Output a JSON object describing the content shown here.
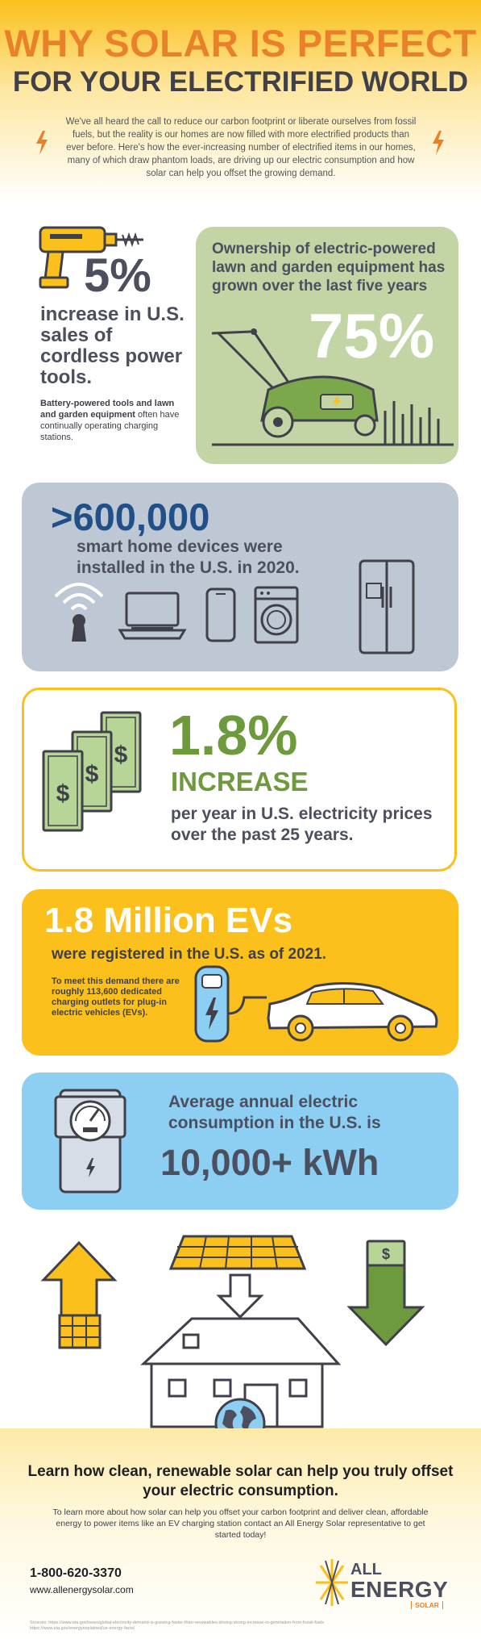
{
  "header": {
    "title_line1": "WHY SOLAR IS PERFECT",
    "title_line2": "FOR YOUR ELECTRIFIED WORLD",
    "intro": "We've all heard the call to reduce our carbon footprint or liberate ourselves from fossil fuels, but the reality is our homes are now filled with more electrified products than ever before. Here's how the ever-increasing number of electrified items in our homes, many of which draw phantom loads, are driving up our electric consumption and how solar can help you offset the growing demand."
  },
  "tools": {
    "percent": "5%",
    "headline": "increase in U.S. sales of cordless power tools.",
    "detail_bold": "Battery-powered tools and lawn and garden equipment",
    "detail_rest": " often have continually operating charging stations."
  },
  "lawn": {
    "text": "Ownership of electric-powered lawn and garden equipment has grown over the last five years",
    "percent": "75%"
  },
  "smart_home": {
    "number": ">600,000",
    "text": "smart home devices were installed in the U.S. in 2020."
  },
  "electricity_price": {
    "percent": "1.8%",
    "label": "INCREASE",
    "text": "per year in U.S. electricity prices over the past 25 years.",
    "bill_symbol": "$"
  },
  "ev": {
    "title": "1.8 Million EVs",
    "subtitle": "were registered in the U.S. as of 2021.",
    "detail": "To meet this demand there are roughly 113,600 dedicated charging outlets for plug-in electric vehicles (EVs)."
  },
  "consumption": {
    "text": "Average annual electric consumption in the U.S. is",
    "value": "10,000+ kWh"
  },
  "solar_graphic": {
    "down_arrow_symbol": "$"
  },
  "footer": {
    "headline": "Learn how clean, renewable solar can help you truly offset your electric consumption.",
    "body": "To learn more about how solar can help you offset your carbon footprint and deliver clean, affordable energy to power items like an EV charging station contact an All Energy Solar representative to get started today!",
    "phone": "1-800-620-3370",
    "website": "www.allenergysolar.com",
    "sources": "Sources: https://www.eia.gov/news/global-electricity-demand-is-growing-faster-than-renewables-driving-strong-increase-in-generation-from-fossil-fuels https://www.eia.gov/energyexplained/us-energy-facts/",
    "logo_all": "ALL",
    "logo_energy": "ENERGY",
    "logo_solar": "SOLAR"
  },
  "colors": {
    "orange": "#e8812a",
    "yellow": "#fbc01b",
    "green": "#6e9a3e",
    "navy": "#214f87",
    "slate": "#4c4f5e"
  }
}
